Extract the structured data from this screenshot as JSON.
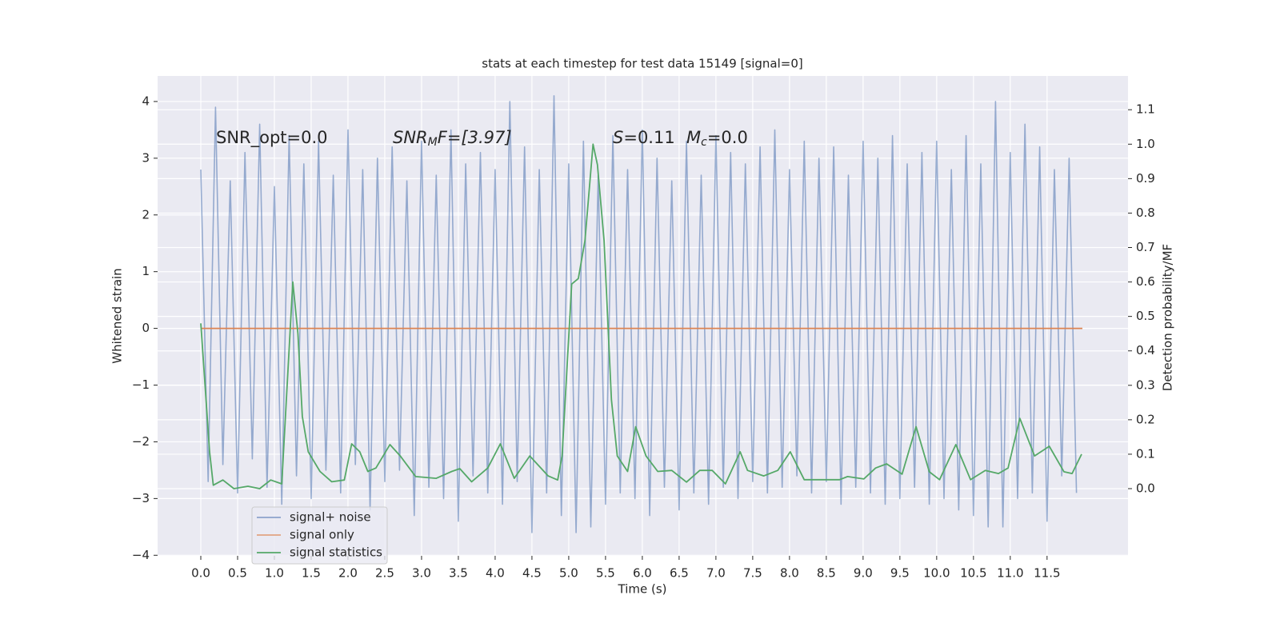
{
  "chart_data": {
    "type": "line",
    "title": "stats at each timestep for test data 15149 [signal=0]",
    "xlabel": "Time (s)",
    "ylabel": "Whitened strain",
    "y2label": "Detection probability/MF",
    "xlim": [
      -0.587,
      12.6
    ],
    "ylim": [
      -4.01,
      4.45
    ],
    "y2lim": [
      -0.195,
      1.198
    ],
    "xticks": [
      {
        "value": 0,
        "label": "0.0"
      },
      0.5,
      {
        "value": 1,
        "label": "1.0"
      },
      1.5,
      {
        "value": 2,
        "label": "2.0"
      },
      2.5,
      {
        "value": 3,
        "label": "3.0"
      },
      3.5,
      {
        "value": 4,
        "label": "4.0"
      },
      4.5,
      {
        "value": 5,
        "label": "5.0"
      },
      5.5,
      {
        "value": 6,
        "label": "6.0"
      },
      6.5,
      {
        "value": 7,
        "label": "7.0"
      },
      7.5,
      {
        "value": 8,
        "label": "8.0"
      },
      8.5,
      {
        "value": 9,
        "label": "9.0"
      },
      9.5,
      {
        "value": 10,
        "label": "10.0"
      },
      10.5,
      {
        "value": 11,
        "label": "11.0"
      },
      11.5
    ],
    "yticks": [
      {
        "value": -4,
        "label": "−4"
      },
      {
        "value": -3,
        "label": "−3"
      },
      {
        "value": -2,
        "label": "−2"
      },
      {
        "value": -1,
        "label": "−1"
      },
      0,
      1,
      2,
      3,
      4
    ],
    "y2ticks": [
      {
        "value": 0,
        "label": "0.0"
      },
      0.1,
      0.2,
      0.3,
      0.4,
      0.5,
      0.6,
      0.7,
      0.8,
      0.9,
      {
        "value": 1,
        "label": "1.0"
      },
      1.1
    ],
    "grid": true,
    "legend": "lower left",
    "annotations": [
      [
        "SNR_opt=0.0"
      ],
      [
        "SNR",
        "M",
        "F=[3.97]"
      ],
      [
        "S",
        "=0.11"
      ],
      [
        "M",
        "c",
        "=0.0"
      ]
    ],
    "series": [
      {
        "name": "signal+ noise",
        "color": "#4c72b0",
        "x": [
          0,
          0.1,
          0.2,
          0.3,
          0.4,
          0.5,
          0.6,
          0.7,
          0.8,
          0.9,
          1,
          1.1,
          1.2,
          1.3,
          1.4,
          1.5,
          1.6,
          1.7,
          1.8,
          1.9,
          2,
          2.1,
          2.2,
          2.3,
          2.4,
          2.5,
          2.6,
          2.7,
          2.8,
          2.9,
          3,
          3.1,
          3.2,
          3.3,
          3.4,
          3.5,
          3.6,
          3.7,
          3.8,
          3.9,
          4,
          4.1,
          4.2,
          4.3,
          4.4,
          4.5,
          4.6,
          4.7,
          4.8,
          4.9,
          5,
          5.1,
          5.2,
          5.3,
          5.4,
          5.5,
          5.6,
          5.7,
          5.8,
          5.9,
          6,
          6.1,
          6.2,
          6.3,
          6.4,
          6.5,
          6.6,
          6.7,
          6.8,
          6.9,
          7,
          7.1,
          7.2,
          7.3,
          7.4,
          7.5,
          7.6,
          7.7,
          7.8,
          7.9,
          8,
          8.1,
          8.2,
          8.3,
          8.4,
          8.5,
          8.6,
          8.7,
          8.8,
          8.9,
          9,
          9.1,
          9.2,
          9.3,
          9.4,
          9.5,
          9.6,
          9.7,
          9.8,
          9.9,
          10,
          10.1,
          10.2,
          10.3,
          10.4,
          10.5,
          10.6,
          10.7,
          10.8,
          10.9,
          11,
          11.1,
          11.2,
          11.3,
          11.4,
          11.5,
          11.6,
          11.7,
          11.8,
          11.9
        ],
        "values": [
          2.8,
          -2.7,
          3.9,
          -2.4,
          2.6,
          -2.9,
          3.1,
          -2.3,
          3.6,
          -2.8,
          2.5,
          -3.1,
          3.4,
          -2.6,
          2.9,
          -3.0,
          3.3,
          -2.5,
          2.7,
          -2.9,
          3.5,
          -2.4,
          2.8,
          -3.2,
          3.0,
          -2.7,
          3.2,
          -2.5,
          2.6,
          -3.3,
          3.3,
          -2.8,
          2.7,
          -3.0,
          3.5,
          -3.4,
          2.9,
          -2.6,
          3.1,
          -2.9,
          2.8,
          -3.1,
          4.0,
          -2.7,
          3.2,
          -3.6,
          2.8,
          -2.9,
          4.1,
          -3.3,
          2.9,
          -3.6,
          3.3,
          -3.5,
          2.7,
          -3.1,
          3.4,
          -2.9,
          2.8,
          -3.0,
          3.5,
          -3.3,
          3.0,
          -2.8,
          2.6,
          -3.2,
          3.3,
          -2.9,
          2.7,
          -3.1,
          3.4,
          -2.8,
          3.1,
          -3.0,
          2.9,
          -2.7,
          3.2,
          -2.9,
          3.5,
          -2.8,
          2.8,
          -2.6,
          3.3,
          -2.9,
          3.0,
          -2.7,
          3.2,
          -3.1,
          2.7,
          -2.8,
          3.3,
          -2.9,
          3.0,
          -3.1,
          3.4,
          -3.0,
          2.9,
          -2.8,
          3.1,
          -3.1,
          3.3,
          -3.0,
          2.8,
          -3.2,
          3.4,
          -3.3,
          2.9,
          -3.5,
          4.0,
          -3.5,
          3.1,
          -3.0,
          3.6,
          -2.9,
          3.2,
          -3.4,
          2.8,
          -2.6,
          3.0,
          -2.9
        ]
      },
      {
        "name": "signal only",
        "color": "#dd8452",
        "x": [
          0,
          11.98
        ],
        "values": [
          0,
          0
        ]
      },
      {
        "name": "signal statistics",
        "color": "#55a868",
        "axis": "y2",
        "x": [
          0,
          0.12,
          0.17,
          0.3,
          0.45,
          0.64,
          0.8,
          0.95,
          1.1,
          1.25,
          1.32,
          1.38,
          1.46,
          1.62,
          1.78,
          1.95,
          2.05,
          2.16,
          2.27,
          2.38,
          2.57,
          2.71,
          2.92,
          3.2,
          3.41,
          3.52,
          3.68,
          3.9,
          4.07,
          4.26,
          4.47,
          4.72,
          4.85,
          4.91,
          5.04,
          5.13,
          5.22,
          5.33,
          5.39,
          5.48,
          5.58,
          5.66,
          5.8,
          5.91,
          6.05,
          6.21,
          6.4,
          6.6,
          6.78,
          6.95,
          7.13,
          7.33,
          7.43,
          7.65,
          7.84,
          8.01,
          8.2,
          8.41,
          8.68,
          8.79,
          9.01,
          9.17,
          9.32,
          9.53,
          9.72,
          9.9,
          10.04,
          10.26,
          10.46,
          10.66,
          10.84,
          10.97,
          11.13,
          11.33,
          11.53,
          11.73,
          11.84,
          11.97
        ],
        "values": [
          0.48,
          0.107,
          0.01,
          0.025,
          0,
          0.007,
          0,
          0.025,
          0.014,
          0.6,
          0.45,
          0.21,
          0.107,
          0.05,
          0.02,
          0.025,
          0.13,
          0.107,
          0.05,
          0.06,
          0.128,
          0.095,
          0.035,
          0.03,
          0.05,
          0.058,
          0.02,
          0.06,
          0.13,
          0.03,
          0.095,
          0.037,
          0.025,
          0.095,
          0.594,
          0.61,
          0.72,
          1.0,
          0.94,
          0.72,
          0.258,
          0.095,
          0.05,
          0.18,
          0.095,
          0.05,
          0.053,
          0.019,
          0.053,
          0.053,
          0.014,
          0.107,
          0.053,
          0.037,
          0.053,
          0.107,
          0.026,
          0.026,
          0.026,
          0.035,
          0.028,
          0.06,
          0.072,
          0.042,
          0.18,
          0.049,
          0.026,
          0.128,
          0.026,
          0.053,
          0.044,
          0.06,
          0.204,
          0.095,
          0.123,
          0.049,
          0.044,
          0.1
        ]
      }
    ]
  }
}
